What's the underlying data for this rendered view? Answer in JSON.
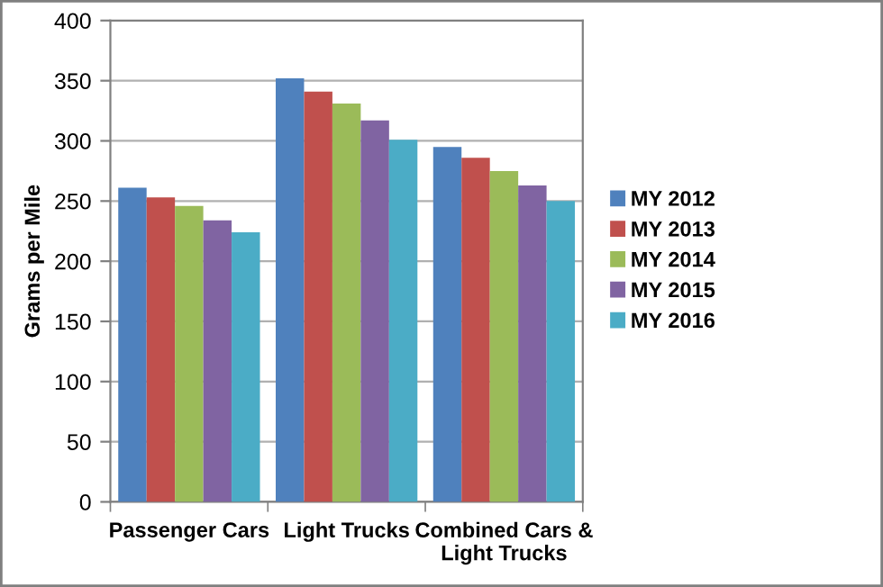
{
  "chart_data": {
    "type": "bar",
    "ylabel": "Grams per Mile",
    "categories": [
      "Passenger Cars",
      "Light Trucks",
      "Combined Cars &\nLight Trucks"
    ],
    "series": [
      {
        "name": "MY 2012",
        "color": "#4f81bd",
        "values": [
          261,
          352,
          295
        ]
      },
      {
        "name": "MY 2013",
        "color": "#c0504d",
        "values": [
          253,
          341,
          286
        ]
      },
      {
        "name": "MY 2014",
        "color": "#9bbb59",
        "values": [
          246,
          331,
          275
        ]
      },
      {
        "name": "MY 2015",
        "color": "#8064a2",
        "values": [
          234,
          317,
          263
        ]
      },
      {
        "name": "MY 2016",
        "color": "#4bacc6",
        "values": [
          224,
          301,
          250
        ]
      }
    ],
    "ylim": [
      0,
      400
    ],
    "yticks": [
      0,
      50,
      100,
      150,
      200,
      250,
      300,
      350,
      400
    ],
    "grid": "y",
    "legend": "right"
  }
}
